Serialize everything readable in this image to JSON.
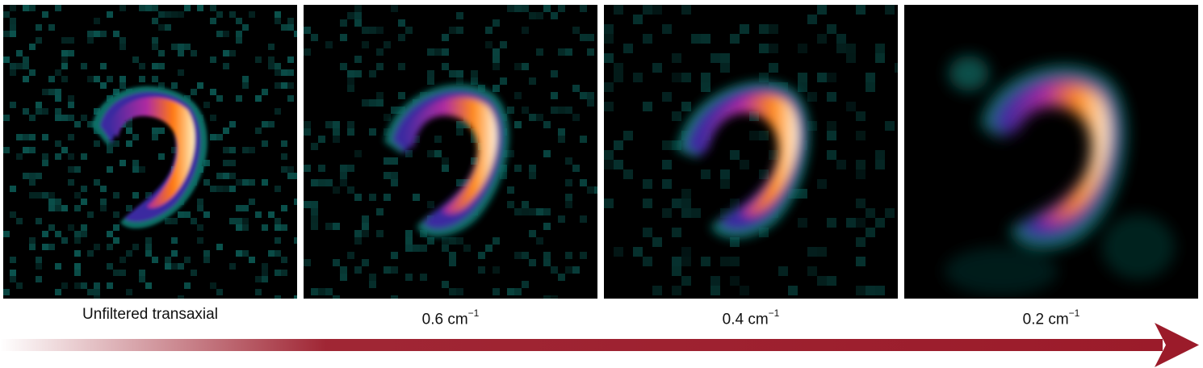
{
  "panels": [
    {
      "id": "unfiltered",
      "caption_main": "Unfiltered transaxial",
      "caption_sup": "",
      "image": "noisy myocardial SPECT slice, unfiltered"
    },
    {
      "id": "f06",
      "caption_main": "0.6 cm",
      "caption_sup": "−1",
      "image": "myocardial SPECT slice, filter cutoff 0.6"
    },
    {
      "id": "f04",
      "caption_main": "0.4 cm",
      "caption_sup": "−1",
      "image": "myocardial SPECT slice, filter cutoff 0.4"
    },
    {
      "id": "f02",
      "caption_main": "0.2 cm",
      "caption_sup": "−1",
      "image": "myocardial SPECT slice, filter cutoff 0.2"
    }
  ],
  "colors": {
    "arrow": "#9b1b2a",
    "background_noise": "#0f6f68",
    "heat_low": "#3a2aa0",
    "heat_mid": "#b02ca0",
    "heat_high": "#ff8a1a",
    "heat_peak": "#fff4e0"
  },
  "arrow_icon": "gradient-right-arrow"
}
